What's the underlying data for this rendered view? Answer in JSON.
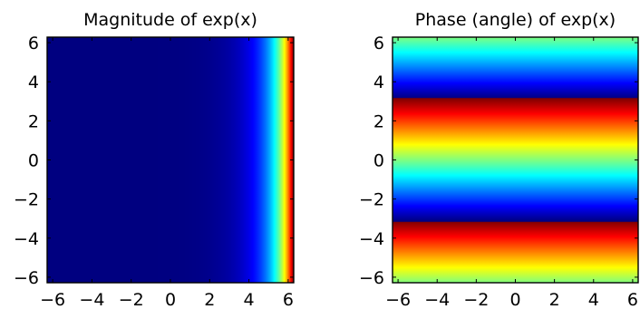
{
  "figure": {
    "panels": 2
  },
  "chart_data": [
    {
      "type": "heatmap",
      "title": "Magnitude of exp(x)",
      "function": "abs(exp(x + i*y))",
      "colormap": "jet",
      "xlabel": "",
      "ylabel": "",
      "xlim": [
        -6.283,
        6.283
      ],
      "ylim": [
        -6.283,
        6.283
      ],
      "xticks": [
        -6,
        -4,
        -2,
        0,
        2,
        4,
        6
      ],
      "yticks": [
        -6,
        -4,
        -2,
        0,
        2,
        4,
        6
      ],
      "xtick_labels": [
        "−6",
        "−4",
        "−2",
        "0",
        "2",
        "4",
        "6"
      ],
      "ytick_labels": [
        "−6",
        "−4",
        "−2",
        "0",
        "2",
        "4",
        "6"
      ],
      "color_range": [
        0.0019,
        535.5
      ],
      "grid": false,
      "legend": "none"
    },
    {
      "type": "heatmap",
      "title": "Phase (angle) of exp(x)",
      "function": "angle(exp(x + i*y))",
      "colormap": "jet",
      "xlabel": "",
      "ylabel": "",
      "xlim": [
        -6.283,
        6.283
      ],
      "ylim": [
        -6.283,
        6.283
      ],
      "xticks": [
        -6,
        -4,
        -2,
        0,
        2,
        4,
        6
      ],
      "yticks": [
        -6,
        -4,
        -2,
        0,
        2,
        4,
        6
      ],
      "xtick_labels": [
        "−6",
        "−4",
        "−2",
        "0",
        "2",
        "4",
        "6"
      ],
      "ytick_labels": [
        "−6",
        "−4",
        "−2",
        "0",
        "2",
        "4",
        "6"
      ],
      "color_range": [
        -3.14159,
        3.14159
      ],
      "grid": false,
      "legend": "none"
    }
  ]
}
